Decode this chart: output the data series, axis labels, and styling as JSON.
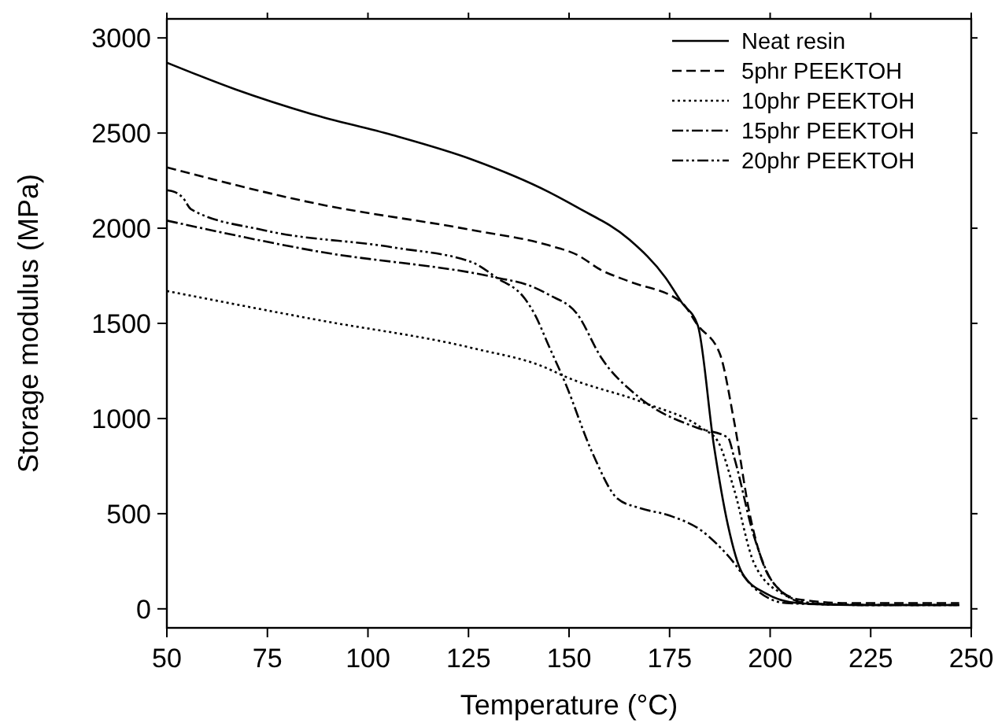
{
  "chart_data": {
    "type": "line",
    "xlabel": "Temperature (°C)",
    "ylabel": "Storage modulus (MPa)",
    "xlim": [
      50,
      250
    ],
    "ylim": [
      -100,
      3100
    ],
    "xticks": [
      50,
      75,
      100,
      125,
      150,
      175,
      200,
      225,
      250
    ],
    "yticks": [
      0,
      500,
      1000,
      1500,
      2000,
      2500,
      3000
    ],
    "grid": false,
    "legend": "top right",
    "series": [
      {
        "name": "Neat resin",
        "color": "#000000",
        "line_style": "solid",
        "x": [
          50,
          67,
          86,
          106,
          126,
          145,
          152,
          165,
          174,
          178,
          182,
          186,
          189.5,
          193,
          199,
          207,
          220,
          235,
          247
        ],
        "values": [
          2870,
          2730,
          2600,
          2490,
          2360,
          2190,
          2110,
          1940,
          1740,
          1610,
          1490,
          860,
          440,
          190,
          80,
          30,
          20,
          20,
          20
        ]
      },
      {
        "name": "5phr PEEKTOH",
        "color": "#000000",
        "line_style": "dashed",
        "x": [
          50,
          87,
          126,
          145,
          152,
          158,
          165,
          178,
          182,
          187.5,
          191,
          195,
          200,
          207,
          220,
          235,
          247
        ],
        "values": [
          2320,
          2130,
          1990,
          1910,
          1860,
          1780,
          1720,
          1610,
          1490,
          1340,
          990,
          490,
          160,
          50,
          30,
          30,
          30
        ]
      },
      {
        "name": "10phr PEEKTOH",
        "color": "#000000",
        "line_style": "dotted",
        "x": [
          50,
          87,
          126,
          145,
          148,
          169,
          183,
          187,
          191,
          196,
          203,
          211,
          225,
          247
        ],
        "values": [
          1670,
          1520,
          1370,
          1260,
          1230,
          1080,
          950,
          880,
          630,
          240,
          80,
          30,
          20,
          20
        ]
      },
      {
        "name": "15phr PEEKTOH",
        "color": "#000000",
        "line_style": "dashdot",
        "x": [
          50,
          87,
          132,
          140,
          145,
          152,
          158,
          167.5,
          182,
          189.5,
          191,
          196,
          201,
          209,
          225,
          247
        ],
        "values": [
          2040,
          1880,
          1740,
          1700,
          1650,
          1550,
          1320,
          1110,
          950,
          900,
          800,
          380,
          130,
          30,
          20,
          20
        ]
      },
      {
        "name": "20phr PEEKTOH",
        "color": "#000000",
        "line_style": "dashdotdot",
        "x": [
          50,
          52,
          54,
          56,
          74,
          106,
          126,
          132,
          139,
          141.4,
          145,
          149,
          155.8,
          162,
          167.5,
          175,
          183,
          189.5,
          196,
          204,
          225,
          247
        ],
        "values": [
          2200,
          2190,
          2160,
          2100,
          1990,
          1900,
          1820,
          1740,
          1630,
          1550,
          1380,
          1190,
          820,
          580,
          530,
          490,
          410,
          280,
          110,
          30,
          20,
          20
        ]
      }
    ]
  }
}
